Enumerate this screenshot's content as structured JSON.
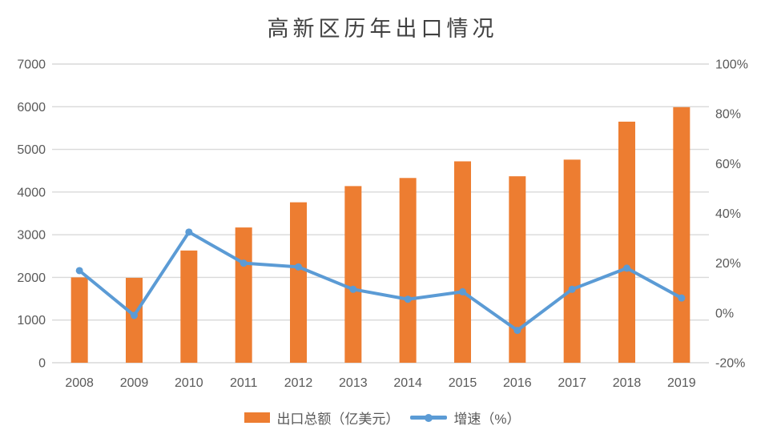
{
  "chart_data": {
    "type": "combo_bar_line",
    "title": "高新区历年出口情况",
    "categories": [
      "2008",
      "2009",
      "2010",
      "2011",
      "2012",
      "2013",
      "2014",
      "2015",
      "2016",
      "2017",
      "2018",
      "2019"
    ],
    "series": [
      {
        "name": "出口总额（亿美元）",
        "type": "bar",
        "axis": "left",
        "color": "#ED7D31",
        "values": [
          2000,
          1990,
          2630,
          3170,
          3760,
          4140,
          4330,
          4720,
          4370,
          4760,
          5650,
          5990
        ]
      },
      {
        "name": "增速（%）",
        "type": "line",
        "axis": "right",
        "color": "#5B9BD5",
        "marker": "circle",
        "values": [
          17,
          -1,
          32.5,
          20,
          18.5,
          9.5,
          5.5,
          8.5,
          -7,
          9.5,
          18,
          6
        ]
      }
    ],
    "left_axis": {
      "min": 0,
      "max": 7000,
      "step": 1000,
      "tick_labels": [
        "0",
        "1000",
        "2000",
        "3000",
        "4000",
        "5000",
        "6000",
        "7000"
      ]
    },
    "right_axis": {
      "min": -20,
      "max": 100,
      "step": 20,
      "tick_labels": [
        "-20%",
        "0%",
        "20%",
        "40%",
        "60%",
        "80%",
        "100%"
      ]
    },
    "grid": true,
    "legend_position": "bottom",
    "colors": {
      "gridline": "#D9D9D9",
      "axis_text": "#595959",
      "title_text": "#404040",
      "background": "#FFFFFF"
    }
  }
}
